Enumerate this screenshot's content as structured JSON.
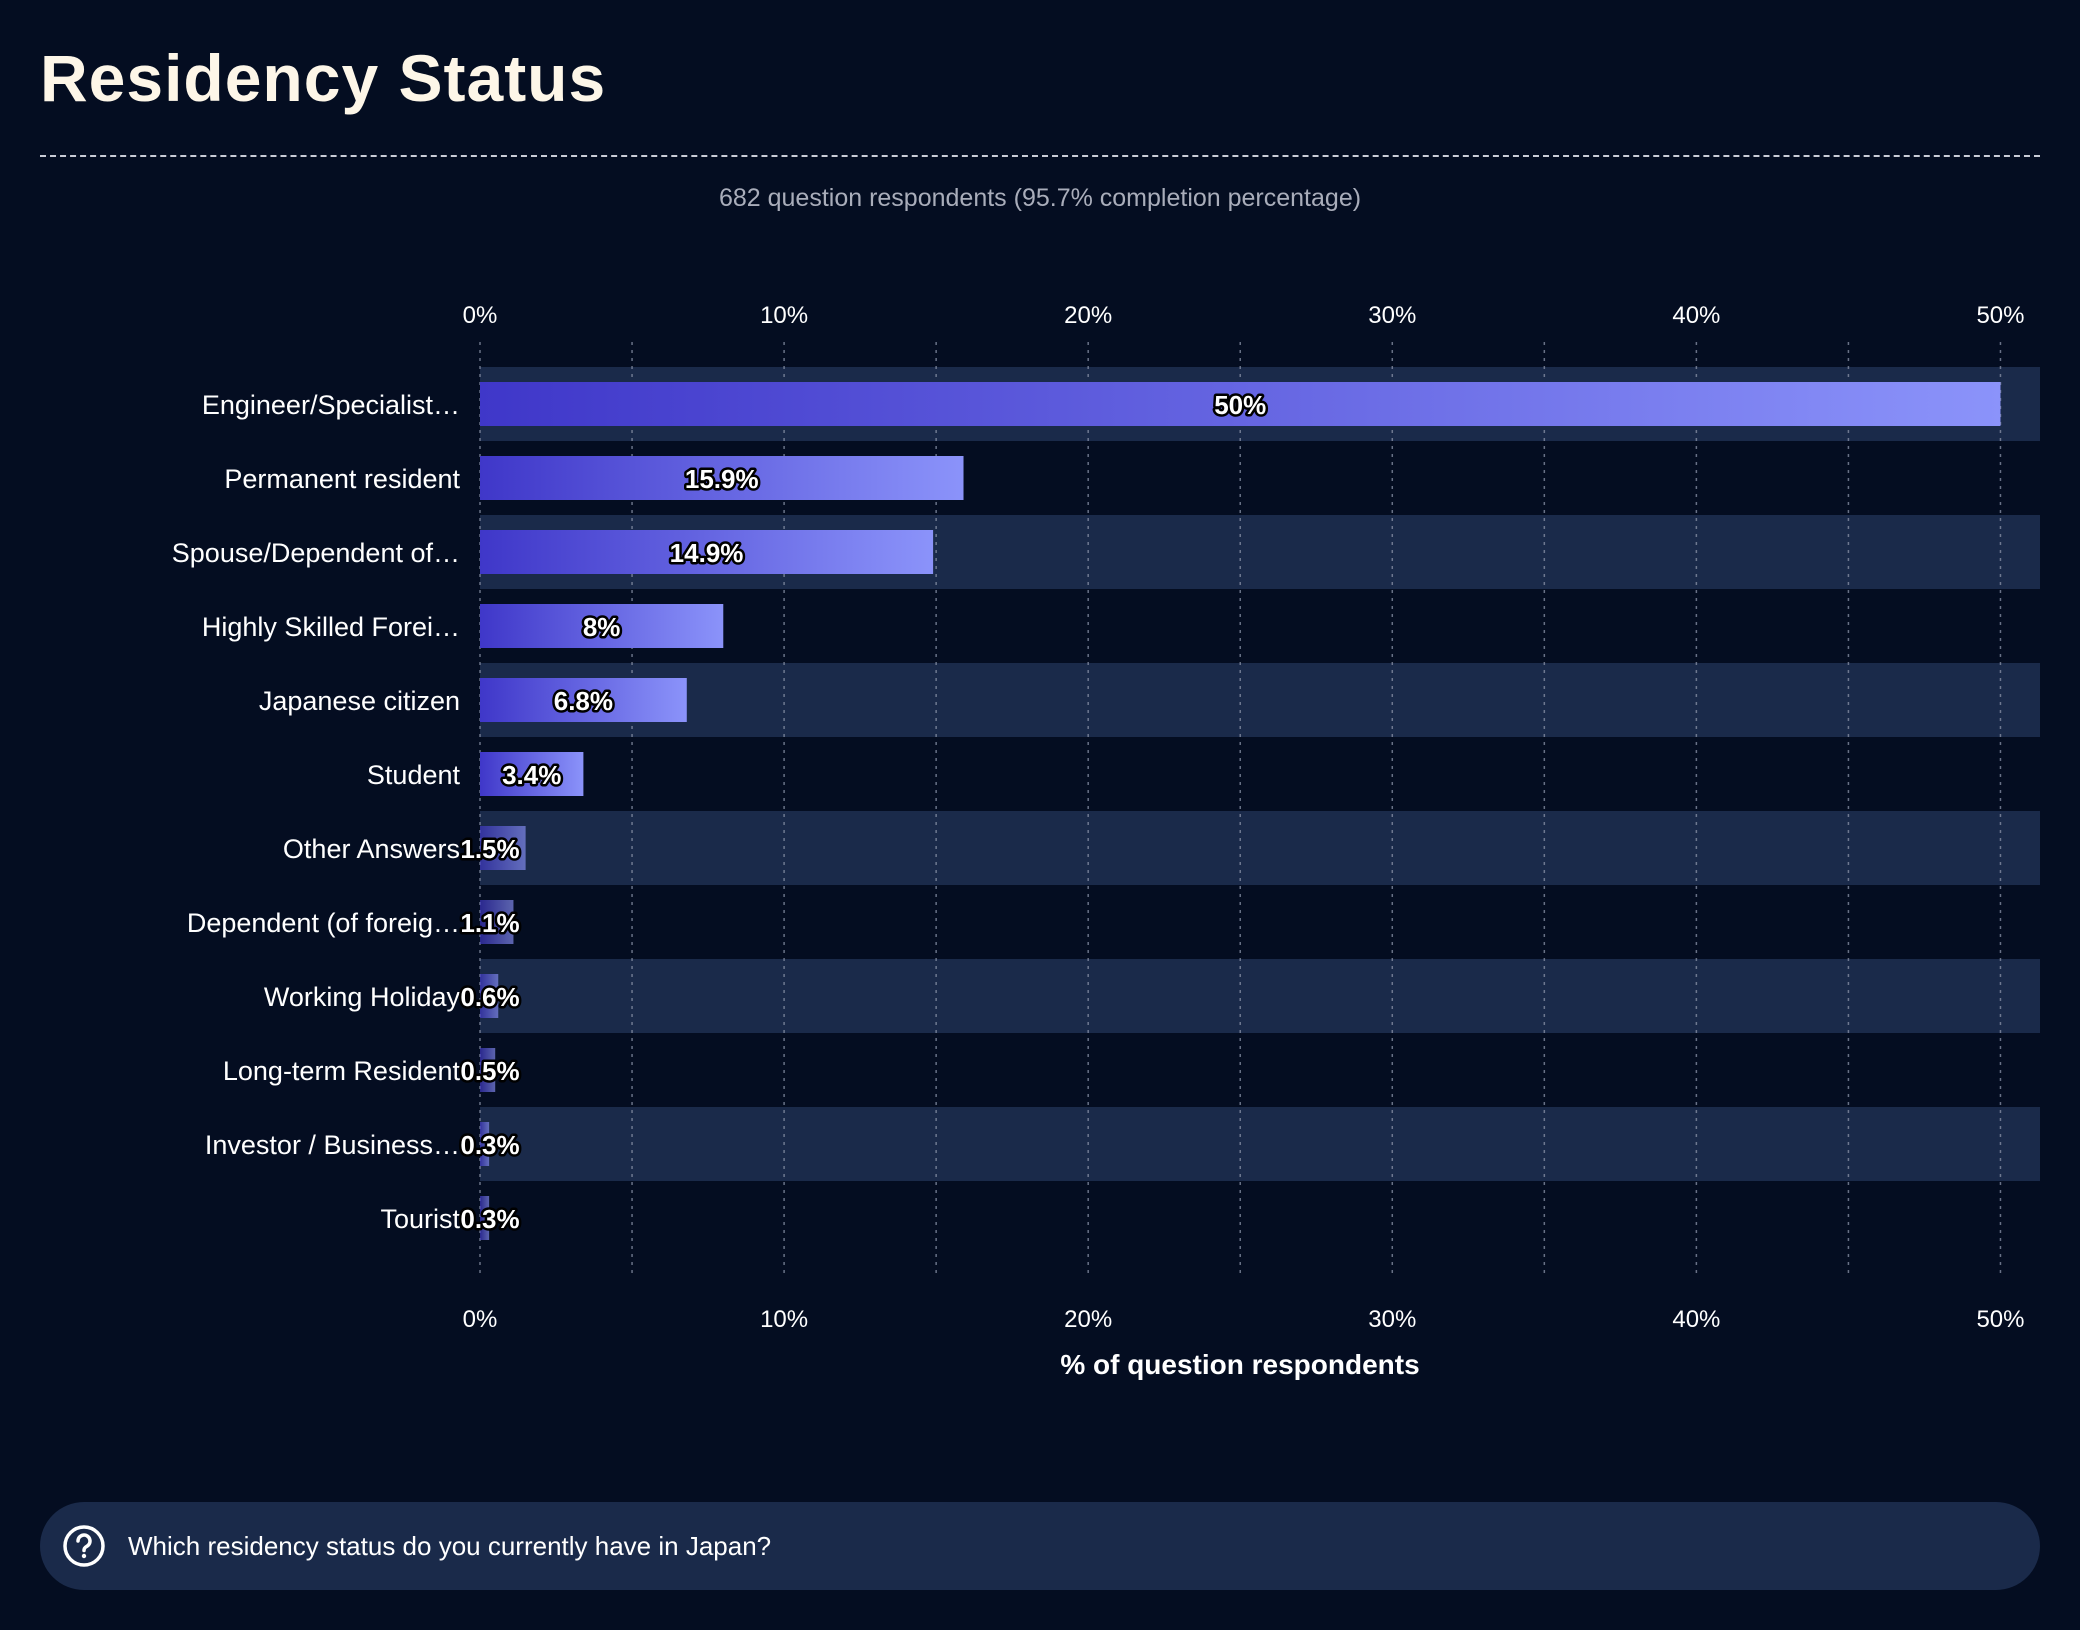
{
  "title": "Residency Status",
  "subtitle": "682 question respondents (95.7% completion percentage)",
  "question": "Which residency status do you currently have in Japan?",
  "icons": {
    "question": "question-circle-icon"
  },
  "colors": {
    "background": "#040d21",
    "band": "#1a2a4a",
    "bar_start": "#3f37c9",
    "bar_end": "#8b93fa",
    "title": "#fdf6e8",
    "subtitle": "#a9adba"
  },
  "chart_data": {
    "type": "bar",
    "orientation": "horizontal",
    "categories": [
      "Engineer/Specialist…",
      "Permanent resident",
      "Spouse/Dependent of…",
      "Highly Skilled Forei…",
      "Japanese citizen",
      "Student",
      "Other Answers",
      "Dependent (of foreig…",
      "Working Holiday",
      "Long-term Resident",
      "Investor / Business…",
      "Tourist"
    ],
    "values": [
      50,
      15.9,
      14.9,
      8,
      6.8,
      3.4,
      1.5,
      1.1,
      0.6,
      0.5,
      0.3,
      0.3
    ],
    "value_labels": [
      "50%",
      "15.9%",
      "14.9%",
      "8%",
      "6.8%",
      "3.4%",
      "1.5%",
      "1.1%",
      "0.6%",
      "0.5%",
      "0.3%",
      "0.3%"
    ],
    "xlim": [
      0,
      51.3
    ],
    "xticks": [
      0,
      10,
      20,
      30,
      40,
      50
    ],
    "xtick_labels": [
      "0%",
      "10%",
      "20%",
      "30%",
      "40%",
      "50%"
    ],
    "xlabel": "% of question respondents",
    "ylabel": "",
    "grid": true,
    "legend": "none"
  }
}
